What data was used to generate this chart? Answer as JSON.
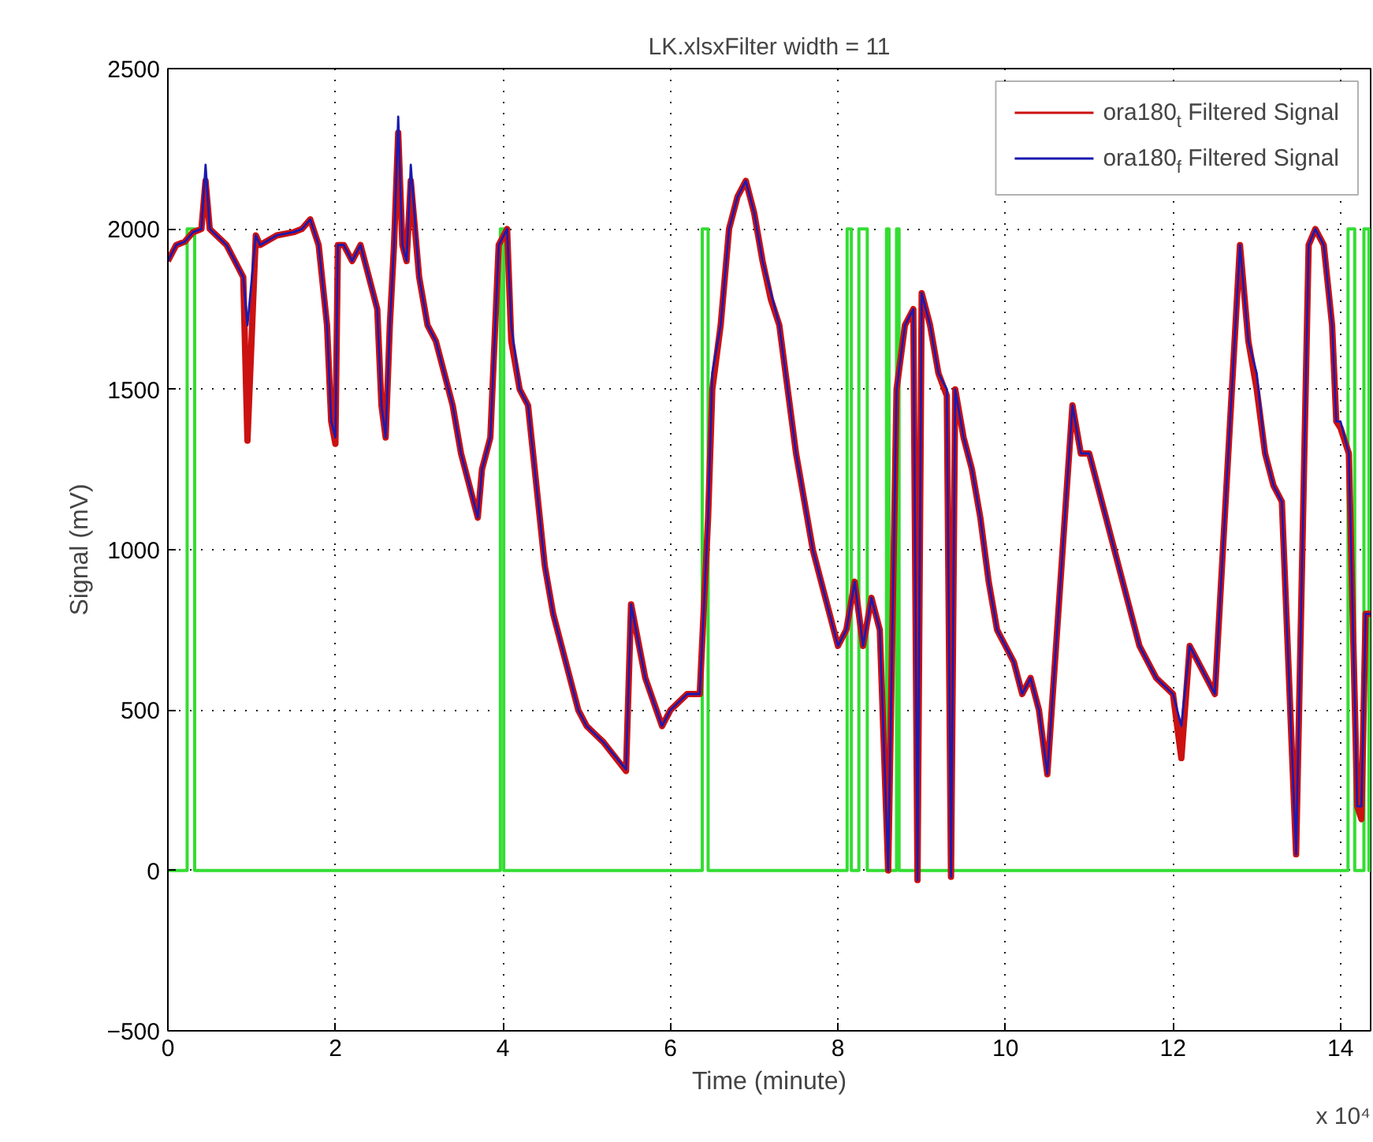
{
  "chart_data": {
    "type": "line",
    "title": "LK.xlsxFilter width = 11",
    "xlabel": "Time (minute)",
    "ylabel": "Signal (mV)",
    "annotations": [
      "x 10⁴"
    ],
    "xlim": [
      0,
      14.36
    ],
    "ylim": [
      -500,
      2500
    ],
    "xticks": [
      0,
      2,
      4,
      6,
      8,
      10,
      12,
      14
    ],
    "yticks": [
      -500,
      0,
      500,
      1000,
      1500,
      2000,
      2500
    ],
    "grid": true,
    "legend": "top right",
    "line_style": "solid",
    "marker": "none",
    "x": [
      0,
      0.1,
      0.2,
      0.3,
      0.4,
      0.45,
      0.5,
      0.7,
      0.8,
      0.9,
      0.95,
      1.05,
      1.1,
      1.3,
      1.5,
      1.6,
      1.7,
      1.8,
      1.9,
      1.95,
      2.0,
      2.03,
      2.1,
      2.2,
      2.3,
      2.4,
      2.5,
      2.55,
      2.6,
      2.65,
      2.7,
      2.75,
      2.8,
      2.85,
      2.9,
      3.0,
      3.1,
      3.2,
      3.3,
      3.4,
      3.5,
      3.6,
      3.7,
      3.75,
      3.85,
      3.95,
      4.05,
      4.1,
      4.2,
      4.3,
      4.4,
      4.5,
      4.6,
      4.7,
      4.8,
      4.9,
      5.0,
      5.2,
      5.47,
      5.53,
      5.7,
      5.9,
      6.0,
      6.2,
      6.35,
      6.45,
      6.5,
      6.6,
      6.7,
      6.8,
      6.9,
      7.0,
      7.1,
      7.2,
      7.3,
      7.4,
      7.5,
      7.6,
      7.7,
      7.8,
      7.9,
      8.0,
      8.1,
      8.2,
      8.3,
      8.4,
      8.5,
      8.6,
      8.7,
      8.8,
      8.9,
      8.95,
      9.0,
      9.1,
      9.2,
      9.3,
      9.35,
      9.4,
      9.5,
      9.6,
      9.7,
      9.8,
      9.9,
      10.0,
      10.1,
      10.2,
      10.3,
      10.4,
      10.5,
      10.8,
      10.9,
      11.0,
      11.1,
      11.2,
      11.4,
      11.6,
      11.8,
      12.0,
      12.1,
      12.2,
      12.4,
      12.5,
      12.8,
      12.9,
      13.0,
      13.1,
      13.2,
      13.3,
      13.47,
      13.62,
      13.7,
      13.8,
      13.9,
      13.95,
      14.0,
      14.1,
      14.2,
      14.25,
      14.3,
      14.36
    ],
    "series": [
      {
        "name": "ora180$_{t}$ Filtered Signal",
        "color": "#cc1111",
        "values": [
          1900,
          1950,
          1960,
          1990,
          2000,
          2150,
          2000,
          1950,
          1900,
          1850,
          1340,
          1980,
          1950,
          1980,
          1990,
          2000,
          2030,
          1950,
          1700,
          1400,
          1330,
          1950,
          1950,
          1900,
          1950,
          1850,
          1750,
          1450,
          1350,
          1700,
          1950,
          2300,
          1950,
          1900,
          2150,
          1850,
          1700,
          1650,
          1550,
          1450,
          1300,
          1200,
          1100,
          1250,
          1350,
          1950,
          2000,
          1650,
          1500,
          1450,
          1200,
          950,
          800,
          700,
          600,
          500,
          450,
          400,
          310,
          830,
          600,
          450,
          500,
          550,
          550,
          1100,
          1500,
          1700,
          2000,
          2100,
          2150,
          2050,
          1900,
          1780,
          1700,
          1500,
          1300,
          1150,
          1000,
          900,
          800,
          700,
          750,
          900,
          700,
          850,
          750,
          0,
          1500,
          1700,
          1750,
          -30,
          1800,
          1700,
          1550,
          1480,
          -20,
          1500,
          1350,
          1250,
          1100,
          900,
          750,
          700,
          650,
          550,
          600,
          500,
          300,
          1450,
          1300,
          1300,
          1200,
          1100,
          900,
          700,
          600,
          550,
          350,
          700,
          600,
          550,
          1950,
          1650,
          1500,
          1300,
          1200,
          1150,
          50,
          1950,
          2000,
          1950,
          1700,
          1400,
          1380,
          1300,
          200,
          160,
          800,
          800
        ]
      },
      {
        "name": "ora180$_{f}$ Filtered Signal",
        "color": "#1a1ab0",
        "values": [
          1900,
          1950,
          1960,
          1990,
          2000,
          2200,
          2000,
          1950,
          1900,
          1850,
          1700,
          1980,
          1950,
          1980,
          1990,
          2000,
          2030,
          1950,
          1700,
          1400,
          1350,
          1950,
          1950,
          1900,
          1950,
          1850,
          1750,
          1450,
          1350,
          1700,
          1950,
          2350,
          1950,
          1900,
          2200,
          1850,
          1700,
          1650,
          1550,
          1450,
          1300,
          1200,
          1100,
          1250,
          1350,
          1950,
          2000,
          1700,
          1500,
          1450,
          1200,
          950,
          800,
          700,
          600,
          500,
          450,
          400,
          315,
          830,
          600,
          450,
          500,
          550,
          550,
          1100,
          1550,
          1700,
          2000,
          2100,
          2150,
          2050,
          1900,
          1800,
          1700,
          1500,
          1300,
          1150,
          1000,
          900,
          800,
          700,
          750,
          900,
          700,
          850,
          750,
          0,
          1500,
          1700,
          1750,
          -30,
          1800,
          1700,
          1550,
          1500,
          -20,
          1500,
          1350,
          1250,
          1100,
          900,
          750,
          700,
          650,
          550,
          600,
          500,
          300,
          1450,
          1300,
          1300,
          1200,
          1100,
          900,
          700,
          600,
          550,
          450,
          700,
          600,
          550,
          1950,
          1650,
          1550,
          1300,
          1200,
          1150,
          50,
          1950,
          2000,
          1950,
          1700,
          1400,
          1400,
          1300,
          200,
          200,
          800,
          800
        ]
      },
      {
        "type": "step",
        "color": "#33dd33",
        "x": [
          0,
          0.23,
          0.32,
          3.97,
          4.01,
          6.38,
          6.45,
          8.11,
          8.16,
          8.25,
          8.35,
          8.58,
          8.61,
          8.7,
          8.73,
          14.09,
          14.17,
          14.28,
          14.34,
          14.36
        ],
        "values": [
          0,
          2000,
          0,
          2000,
          0,
          2000,
          0,
          2000,
          0,
          2000,
          0,
          2000,
          0,
          2000,
          0,
          2000,
          0,
          2000,
          0,
          0
        ]
      }
    ]
  }
}
